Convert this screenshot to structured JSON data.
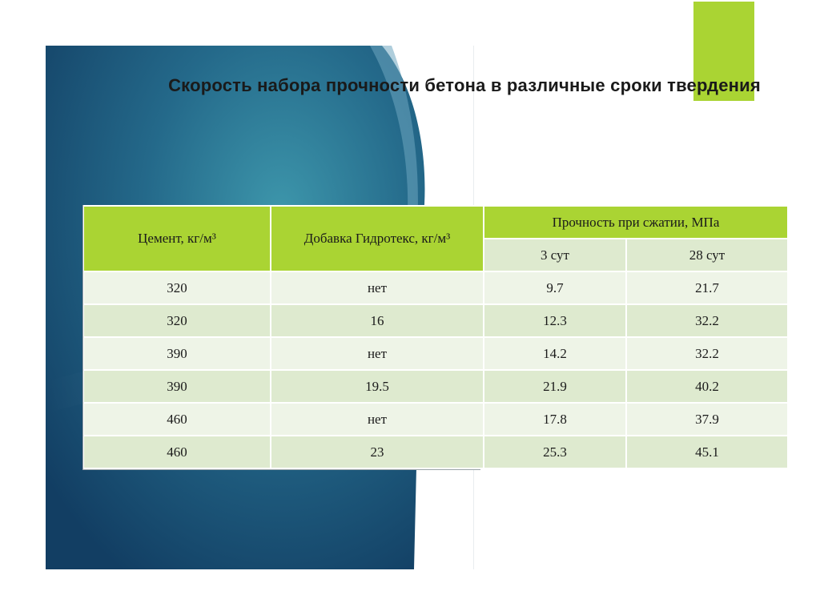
{
  "slide": {
    "title": "Скорость набора прочности бетона в различные сроки твердения"
  },
  "table": {
    "headers": {
      "cement": "Цемент, кг/м³",
      "additive": "Добавка Гидротекс,   кг/м³",
      "strength": "Прочность при сжатии, МПа",
      "day3": "3 сут",
      "day28": "28 сут"
    },
    "rows": [
      {
        "cement": "320",
        "additive": "нет",
        "d3": "9.7",
        "d28": "21.7"
      },
      {
        "cement": "320",
        "additive": "16",
        "d3": "12.3",
        "d28": "32.2"
      },
      {
        "cement": "390",
        "additive": "нет",
        "d3": "14.2",
        "d28": "32.2"
      },
      {
        "cement": "390",
        "additive": "19.5",
        "d3": "21.9",
        "d28": "40.2"
      },
      {
        "cement": "460",
        "additive": "нет",
        "d3": "17.8",
        "d28": "37.9"
      },
      {
        "cement": "460",
        "additive": "23",
        "d3": "25.3",
        "d28": "45.1"
      }
    ]
  },
  "colors": {
    "header_green": "#aad433",
    "row_light": "#eef4e7",
    "row_dark": "#deeacf",
    "background_blue": "#1e5877"
  }
}
